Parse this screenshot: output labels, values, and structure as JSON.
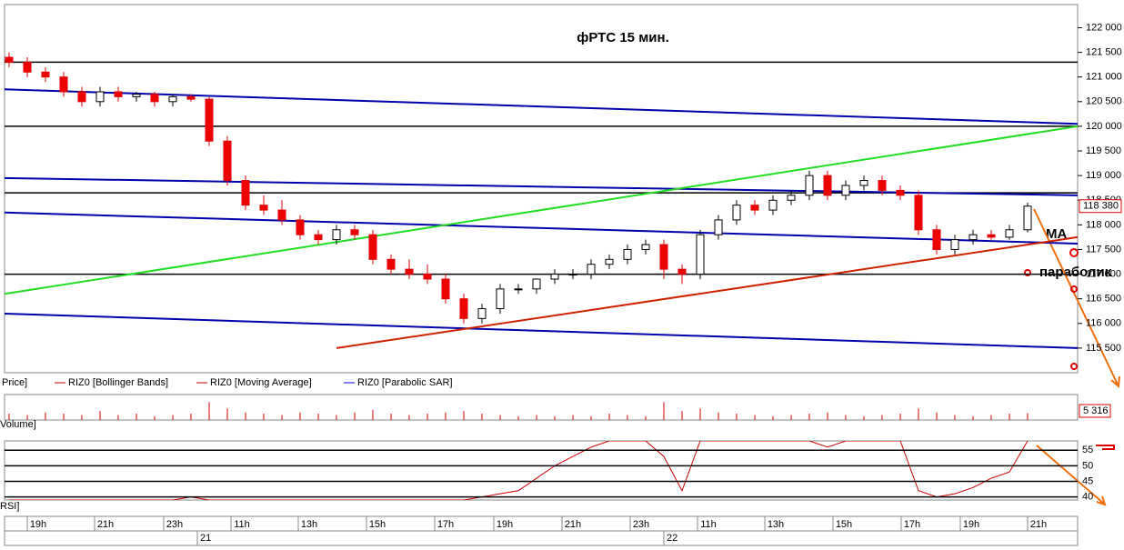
{
  "chart_data": {
    "type": "candlestick",
    "title": "фРТС   15 мин.",
    "annotations": [
      "MA",
      "параболик"
    ],
    "legend": [
      "Price]",
      "RIZ0 [Bollinger Bands]",
      "RIZ0 [Moving Average]",
      "RIZ0 [Parabolic SAR]"
    ],
    "open": [
      121400,
      121300,
      121100,
      121000,
      120700,
      120500,
      120700,
      120600,
      120650,
      120500,
      120600,
      120550,
      119700,
      118900,
      118400,
      118300,
      118100,
      117800,
      117700,
      117900,
      117800,
      117300,
      117100,
      117000,
      116900,
      116500,
      116100,
      116300,
      116700,
      116700,
      116900,
      117000,
      117000,
      117200,
      117300,
      117500,
      117600,
      117100,
      117000,
      117800,
      118100,
      118400,
      118300,
      118500,
      118600,
      119000,
      118600,
      118800,
      118900,
      118700,
      118600,
      117900,
      117500,
      117700,
      117800,
      117750,
      117900
    ],
    "high": [
      121500,
      121400,
      121200,
      121100,
      120800,
      120800,
      120800,
      120700,
      120700,
      120650,
      120650,
      120600,
      119800,
      119000,
      118600,
      118500,
      118200,
      117900,
      118000,
      118000,
      117900,
      117400,
      117300,
      117200,
      117000,
      116600,
      116400,
      116800,
      116800,
      116900,
      117100,
      117100,
      117300,
      117400,
      117600,
      117700,
      117700,
      117200,
      117900,
      118200,
      118500,
      118500,
      118600,
      118700,
      119100,
      119100,
      118900,
      119000,
      119000,
      118800,
      118700,
      118000,
      117800,
      117900,
      117900,
      118000,
      118450
    ],
    "low": [
      121200,
      121000,
      120900,
      120600,
      120400,
      120400,
      120500,
      120500,
      120400,
      120400,
      120500,
      119600,
      118800,
      118300,
      118200,
      118000,
      117700,
      117600,
      117600,
      117700,
      117200,
      117000,
      116900,
      116800,
      116400,
      116000,
      116000,
      116200,
      116600,
      116600,
      116800,
      116900,
      116900,
      117100,
      117200,
      117400,
      116900,
      116800,
      116900,
      117700,
      118000,
      118200,
      118200,
      118400,
      118500,
      118500,
      118500,
      118700,
      118600,
      118500,
      117800,
      117400,
      117400,
      117600,
      117700,
      117700,
      117850
    ],
    "close": [
      121300,
      121100,
      121000,
      120700,
      120500,
      120700,
      120600,
      120650,
      120500,
      120600,
      120550,
      119700,
      118900,
      118400,
      118300,
      118100,
      117800,
      117700,
      117900,
      117800,
      117300,
      117100,
      117000,
      116900,
      116500,
      116100,
      116300,
      116700,
      116700,
      116900,
      117000,
      117000,
      117200,
      117300,
      117500,
      117600,
      117100,
      117000,
      117800,
      118100,
      118400,
      118300,
      118500,
      118600,
      119000,
      118600,
      118800,
      118900,
      118700,
      118600,
      117900,
      117500,
      117700,
      117800,
      117750,
      117900,
      118380
    ],
    "close_label": "118 380",
    "hlines": [
      121300,
      120000,
      118650,
      117000
    ],
    "trendlines": [
      {
        "color": "#0000aa",
        "x": [
          -0.25,
          58.75
        ],
        "y": [
          120750,
          120050
        ]
      },
      {
        "color": "#0000aa",
        "x": [
          -0.25,
          58.75
        ],
        "y": [
          118950,
          118600
        ]
      },
      {
        "color": "#0000aa",
        "x": [
          -0.25,
          58.75
        ],
        "y": [
          118250,
          117620
        ]
      },
      {
        "color": "#0000aa",
        "x": [
          -0.25,
          58.75
        ],
        "y": [
          116200,
          115500
        ]
      },
      {
        "color": "#22dd22",
        "x": [
          -0.25,
          58.75
        ],
        "y": [
          116600,
          120000
        ]
      },
      {
        "color": "#cc2200",
        "x": [
          18,
          58.75
        ],
        "y": [
          115500,
          117750
        ]
      }
    ],
    "ylim": [
      115000,
      122470
    ],
    "yticks": [
      {
        "value": 122000,
        "label": "122 000"
      },
      {
        "value": 121500,
        "label": "121 500"
      },
      {
        "value": 121000,
        "label": "121 000"
      },
      {
        "value": 120500,
        "label": "120 500"
      },
      {
        "value": 120000,
        "label": "120 000"
      },
      {
        "value": 119500,
        "label": "119 500"
      },
      {
        "value": 119000,
        "label": "119 000"
      },
      {
        "value": 118500,
        "label": "118 500"
      },
      {
        "value": 118000,
        "label": "118 000"
      },
      {
        "value": 117500,
        "label": "117 500"
      },
      {
        "value": 117000,
        "label": "117 000"
      },
      {
        "value": 116500,
        "label": "116 500"
      },
      {
        "value": 116000,
        "label": "116 000"
      },
      {
        "value": 115500,
        "label": "115 500"
      }
    ],
    "volume": {
      "name": "Volume]",
      "values": [
        5000,
        4000,
        6000,
        5000,
        4000,
        7000,
        4000,
        5000,
        3000,
        4000,
        5000,
        14000,
        9000,
        6000,
        5000,
        4000,
        6000,
        5000,
        4000,
        6000,
        8000,
        5000,
        4000,
        5000,
        6000,
        7000,
        5000,
        4000,
        3000,
        4000,
        3000,
        4000,
        3000,
        5000,
        4000,
        3000,
        14000,
        7000,
        9000,
        6000,
        5000,
        4000,
        3000,
        4000,
        5000,
        6000,
        4000,
        3000,
        4000,
        5000,
        9000,
        6000,
        4000,
        3000,
        4000,
        5000,
        5316
      ],
      "last_label": "5 316",
      "ylim": [
        0,
        20000
      ]
    },
    "rsi": {
      "name": "RSI]",
      "values": [
        39,
        39,
        39,
        39,
        39,
        39,
        39,
        39,
        39,
        39,
        40,
        39,
        39,
        39,
        39,
        39,
        39,
        39,
        39,
        39,
        39,
        39,
        39,
        39,
        39,
        39,
        40,
        41,
        42,
        46,
        50,
        53,
        56,
        58,
        58,
        58,
        53,
        42,
        58,
        58,
        58,
        58,
        58,
        58,
        58,
        56,
        58,
        58,
        58,
        58,
        42,
        40,
        41,
        43,
        46,
        48,
        58
      ],
      "ylim": [
        39,
        58
      ],
      "yticks": [
        55,
        50,
        45,
        40
      ]
    },
    "xlabels": [
      "19h",
      "21h",
      "23h",
      "11h",
      "13h",
      "15h",
      "17h",
      "19h",
      "21h",
      "23h",
      "11h",
      "13h",
      "15h",
      "17h",
      "19h",
      "21h"
    ],
    "dates": [
      "21",
      "22"
    ]
  }
}
